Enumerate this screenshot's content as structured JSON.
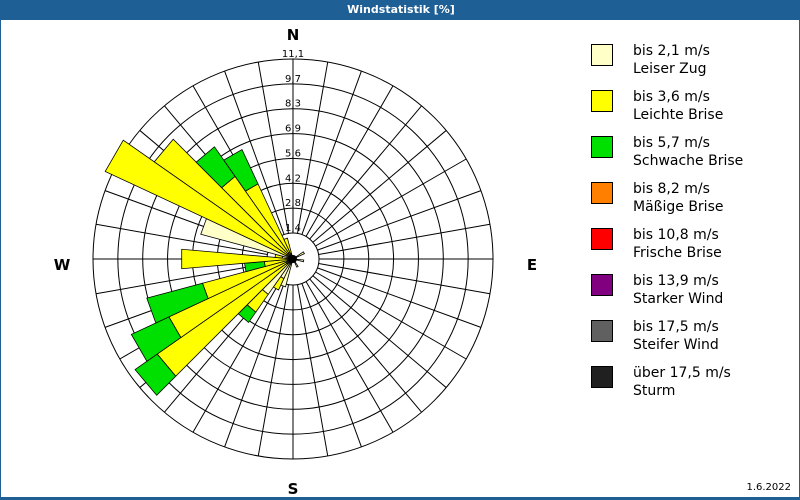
{
  "window": {
    "title": "Windstatistik [%]",
    "date": "1.6.2022"
  },
  "compass": {
    "n": "N",
    "e": "E",
    "s": "S",
    "w": "W"
  },
  "legend": [
    {
      "line1": "bis 2,1 m/s",
      "line2": "Leiser Zug",
      "color": "#ffffc8"
    },
    {
      "line1": "bis 3,6 m/s",
      "line2": "Leichte Brise",
      "color": "#ffff00"
    },
    {
      "line1": "bis 5,7 m/s",
      "line2": "Schwache Brise",
      "color": "#00e000"
    },
    {
      "line1": "bis 8,2 m/s",
      "line2": "Mäßige Brise",
      "color": "#ff8000"
    },
    {
      "line1": "bis 10,8 m/s",
      "line2": "Frische Brise",
      "color": "#ff0000"
    },
    {
      "line1": "bis 13,9 m/s",
      "line2": "Starker Wind",
      "color": "#800080"
    },
    {
      "line1": "bis 17,5 m/s",
      "line2": "Steifer Wind",
      "color": "#606060"
    },
    {
      "line1": "über 17,5 m/s",
      "line2": "Sturm",
      "color": "#202020"
    }
  ],
  "chart_data": {
    "type": "wind-rose",
    "title": "Windstatistik [%]",
    "radial_ticks": [
      "1,4",
      "2,8",
      "4,2",
      "5,6",
      "6,9",
      "8,3",
      "9,7",
      "11,1"
    ],
    "radial_max": 11.1,
    "sector_width_deg": 10,
    "series_names": [
      "Leiser Zug",
      "Leichte Brise",
      "Schwache Brise"
    ],
    "sectors": [
      {
        "dir": 200,
        "cumulative": [
          1.6,
          1.6,
          1.6
        ]
      },
      {
        "dir": 210,
        "cumulative": [
          1.2,
          1.9,
          1.9
        ]
      },
      {
        "dir": 220,
        "cumulative": [
          2.4,
          3.6,
          4.3
        ]
      },
      {
        "dir": 230,
        "cumulative": [
          0.4,
          9.2,
          10.7
        ]
      },
      {
        "dir": 240,
        "cumulative": [
          0.4,
          7.6,
          9.9
        ]
      },
      {
        "dir": 250,
        "cumulative": [
          0.4,
          5.2,
          8.4
        ]
      },
      {
        "dir": 260,
        "cumulative": [
          0.3,
          1.6,
          2.7
        ]
      },
      {
        "dir": 270,
        "cumulative": [
          0.3,
          6.2,
          6.2
        ]
      },
      {
        "dir": 280,
        "cumulative": [
          0.6,
          1.0,
          1.0
        ]
      },
      {
        "dir": 290,
        "cumulative": [
          5.3,
          5.3,
          5.3
        ]
      },
      {
        "dir": 300,
        "cumulative": [
          0.4,
          11.5,
          11.5
        ]
      },
      {
        "dir": 310,
        "cumulative": [
          0.4,
          9.4,
          9.4
        ]
      },
      {
        "dir": 320,
        "cumulative": [
          0.4,
          5.6,
          7.6
        ]
      },
      {
        "dir": 330,
        "cumulative": [
          0.4,
          4.6,
          6.7
        ]
      },
      {
        "dir": 340,
        "cumulative": [
          0.3,
          1.2,
          1.2
        ]
      },
      {
        "dir": 60,
        "cumulative": [
          0.7,
          0.7,
          0.7
        ]
      },
      {
        "dir": 100,
        "cumulative": [
          0.6,
          0.6,
          0.6
        ]
      },
      {
        "dir": 150,
        "cumulative": [
          0.5,
          0.5,
          0.5
        ]
      }
    ]
  }
}
